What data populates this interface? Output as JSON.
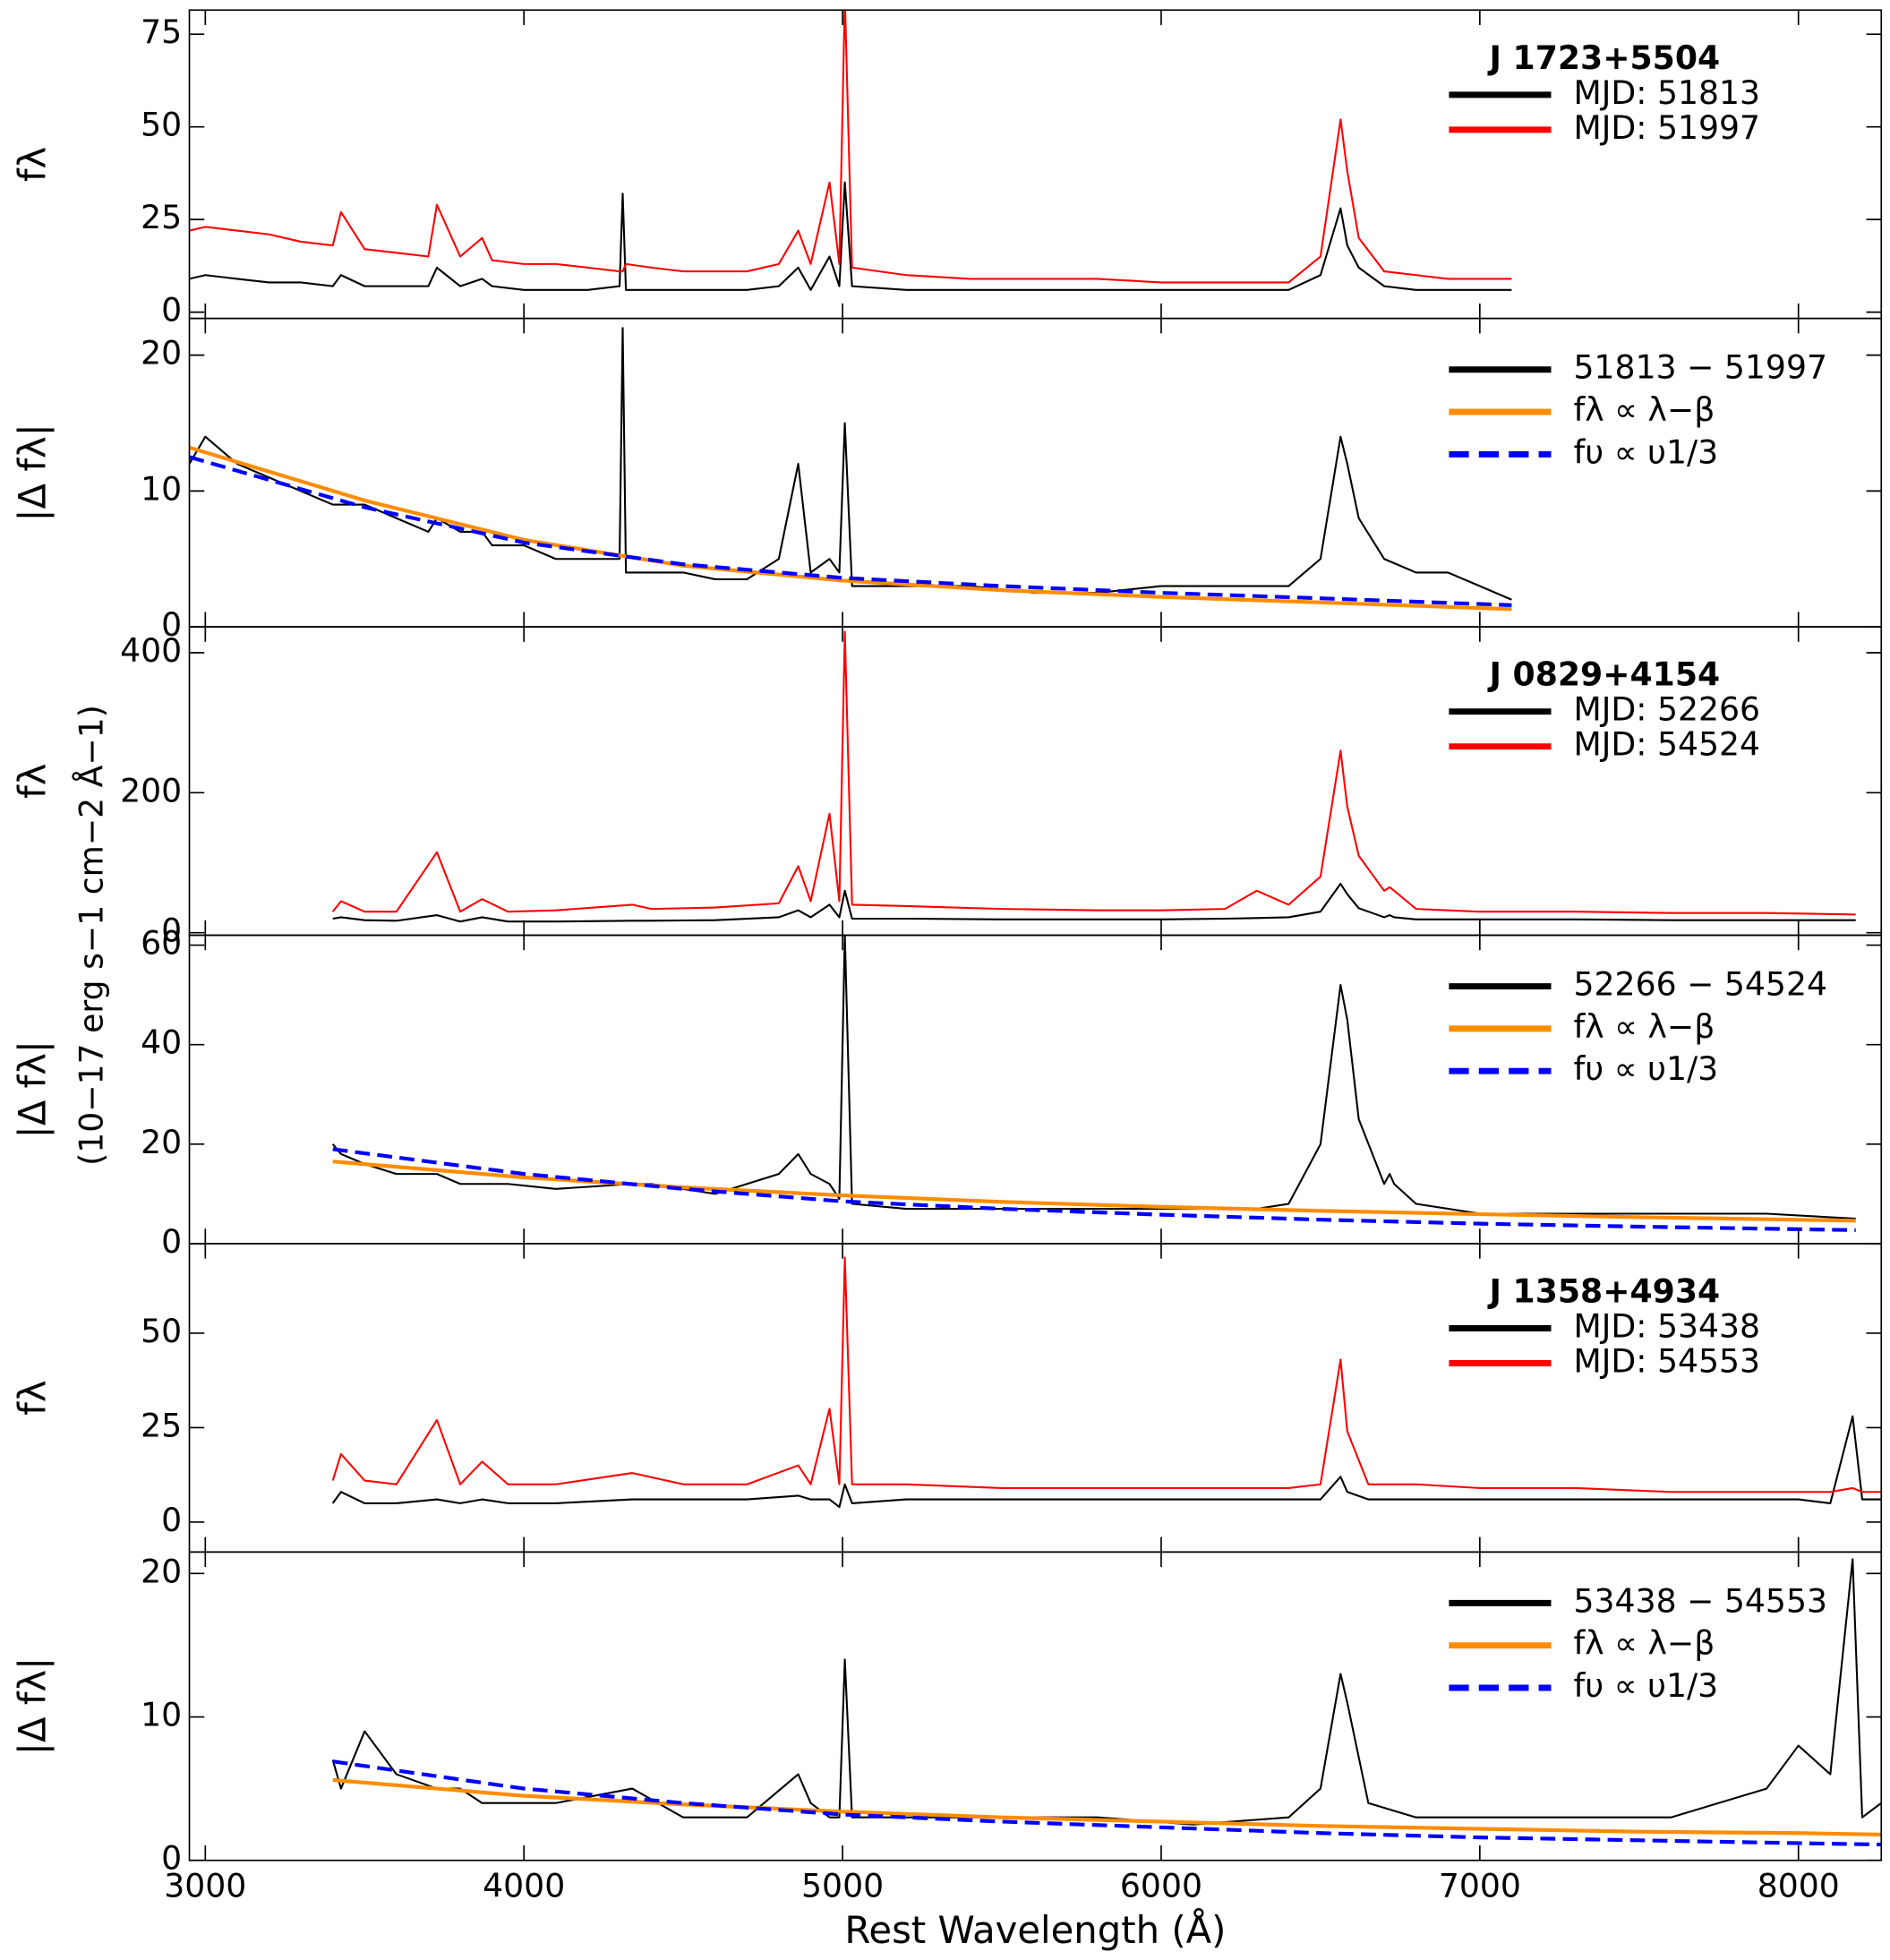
{
  "chart_data": [
    {
      "type": "line",
      "ylabel": "fλ",
      "legend_title": "J 1723+5504",
      "xlim": [
        2950,
        8260
      ],
      "xticks": [
        3000,
        4000,
        5000,
        6000,
        7000,
        8000
      ],
      "ylim": [
        -1.7,
        81.5
      ],
      "yticks": [
        0,
        25,
        50,
        75
      ],
      "x": [
        2950,
        3000,
        3100,
        3200,
        3300,
        3400,
        3426,
        3500,
        3600,
        3700,
        3727,
        3800,
        3869,
        3900,
        4000,
        4100,
        4200,
        4300,
        4310,
        4320,
        4400,
        4500,
        4600,
        4700,
        4800,
        4861,
        4900,
        4959,
        4990,
        5007,
        5030,
        5200,
        5400,
        5600,
        5800,
        6000,
        6200,
        6400,
        6500,
        6563,
        6584,
        6620,
        6700,
        6800,
        6900,
        7000,
        7100
      ],
      "series": [
        {
          "name": "MJD: 51813",
          "color": "#000000",
          "values": [
            9,
            10,
            9,
            8,
            8,
            7,
            10,
            7,
            7,
            7,
            12,
            7,
            9,
            7,
            6,
            6,
            6,
            7,
            32,
            6,
            6,
            6,
            6,
            6,
            7,
            12,
            6,
            15,
            7,
            35,
            7,
            6,
            6,
            6,
            6,
            6,
            6,
            6,
            10,
            28,
            18,
            12,
            7,
            6,
            6,
            6,
            6
          ]
        },
        {
          "name": "MJD: 51997",
          "color": "#ff0000",
          "values": [
            22,
            23,
            22,
            21,
            19,
            18,
            27,
            17,
            16,
            15,
            29,
            15,
            20,
            14,
            13,
            13,
            12,
            11,
            11,
            13,
            12,
            11,
            11,
            11,
            13,
            22,
            13,
            35,
            13,
            85,
            12,
            10,
            9,
            9,
            9,
            8,
            8,
            8,
            15,
            52,
            38,
            20,
            11,
            10,
            9,
            9,
            9
          ]
        }
      ]
    },
    {
      "type": "line",
      "ylabel": "|Δ fλ|",
      "xlim": [
        2950,
        8260
      ],
      "xticks": [
        3000,
        4000,
        5000,
        6000,
        7000,
        8000
      ],
      "ylim": [
        0,
        22.7
      ],
      "yticks": [
        0,
        10,
        20
      ],
      "x": [
        2950,
        3000,
        3100,
        3200,
        3300,
        3400,
        3426,
        3500,
        3600,
        3700,
        3727,
        3800,
        3869,
        3900,
        4000,
        4100,
        4200,
        4300,
        4310,
        4320,
        4400,
        4500,
        4600,
        4700,
        4800,
        4861,
        4900,
        4959,
        4990,
        5007,
        5030,
        5200,
        5400,
        5600,
        5800,
        6000,
        6200,
        6400,
        6500,
        6563,
        6584,
        6620,
        6700,
        6800,
        6900,
        7000,
        7100
      ],
      "series": [
        {
          "name": "51813 − 51997",
          "color": "#000000",
          "values": [
            12,
            14,
            12,
            11,
            10,
            9,
            9,
            9,
            8,
            7,
            8,
            7,
            7,
            6,
            6,
            5,
            5,
            5,
            22,
            4,
            4,
            4,
            3.5,
            3.5,
            5,
            12,
            4,
            5,
            4,
            15,
            3,
            3,
            3,
            2.5,
            2.5,
            3,
            3,
            3,
            5,
            14,
            12,
            8,
            5,
            4,
            4,
            3,
            2
          ]
        },
        {
          "name": "fλ ∝ λ−β",
          "color": "#ff8c00",
          "x": [
            2950,
            3500,
            4000,
            4500,
            5000,
            5500,
            6000,
            6500,
            7100
          ],
          "values": [
            13.2,
            9.3,
            6.4,
            4.5,
            3.4,
            2.7,
            2.2,
            1.8,
            1.3
          ]
        },
        {
          "name": "fυ ∝ υ1/3",
          "color": "#0000ff",
          "dashed": true,
          "x": [
            2950,
            3500,
            4000,
            4500,
            5000,
            5500,
            6000,
            6500,
            7100
          ],
          "values": [
            12.5,
            8.8,
            6.2,
            4.6,
            3.6,
            3.0,
            2.5,
            2.1,
            1.6
          ]
        }
      ]
    },
    {
      "type": "line",
      "ylabel": "fλ",
      "legend_title": "J 0829+4154",
      "xlim": [
        2950,
        8260
      ],
      "xticks": [
        3000,
        4000,
        5000,
        6000,
        7000,
        8000
      ],
      "ylim": [
        -3.6,
        437
      ],
      "yticks": [
        0,
        200,
        400
      ],
      "x": [
        3400,
        3426,
        3500,
        3600,
        3727,
        3800,
        3869,
        3950,
        4100,
        4340,
        4400,
        4600,
        4800,
        4861,
        4900,
        4959,
        4990,
        5007,
        5030,
        5200,
        5500,
        5800,
        6000,
        6200,
        6300,
        6400,
        6500,
        6563,
        6584,
        6620,
        6700,
        6717,
        6731,
        6800,
        7000,
        7300,
        7600,
        7900,
        8180
      ],
      "series": [
        {
          "name": "MJD: 52266",
          "color": "#000000",
          "values": [
            20,
            22,
            18,
            17,
            25,
            16,
            22,
            16,
            16,
            17,
            17,
            18,
            22,
            32,
            22,
            40,
            22,
            60,
            20,
            20,
            19,
            19,
            19,
            20,
            21,
            22,
            30,
            70,
            55,
            35,
            22,
            25,
            22,
            19,
            19,
            19,
            18,
            18,
            18
          ]
        },
        {
          "name": "MJD: 54524",
          "color": "#ff0000",
          "values": [
            30,
            45,
            30,
            30,
            115,
            30,
            48,
            30,
            32,
            40,
            34,
            36,
            42,
            95,
            45,
            170,
            45,
            430,
            40,
            38,
            34,
            32,
            32,
            34,
            60,
            40,
            80,
            260,
            180,
            110,
            60,
            65,
            60,
            34,
            30,
            30,
            28,
            28,
            26
          ]
        }
      ]
    },
    {
      "type": "line",
      "ylabel": "|Δ fλ|",
      "units_label": "(10−17 erg s−1 cm−2 Å−1)",
      "xlim": [
        2950,
        8260
      ],
      "xticks": [
        3000,
        4000,
        5000,
        6000,
        7000,
        8000
      ],
      "ylim": [
        0,
        62
      ],
      "yticks": [
        0,
        20,
        40,
        60
      ],
      "x": [
        3400,
        3426,
        3500,
        3600,
        3727,
        3800,
        3869,
        3950,
        4100,
        4340,
        4400,
        4600,
        4800,
        4861,
        4900,
        4959,
        4990,
        5007,
        5030,
        5200,
        5500,
        5800,
        6000,
        6200,
        6300,
        6400,
        6500,
        6563,
        6584,
        6620,
        6700,
        6717,
        6731,
        6800,
        7000,
        7300,
        7600,
        7900,
        8180
      ],
      "series": [
        {
          "name": "52266 − 54524",
          "color": "#000000",
          "values": [
            20,
            18,
            16,
            14,
            14,
            12,
            12,
            12,
            11,
            12,
            12,
            10,
            14,
            18,
            14,
            12,
            9,
            62,
            8,
            7,
            7,
            7,
            7,
            7,
            7,
            8,
            20,
            52,
            45,
            25,
            12,
            14,
            12,
            8,
            6,
            6,
            6,
            6,
            5
          ]
        },
        {
          "name": "fλ ∝ λ−β",
          "color": "#ff8c00",
          "x": [
            3400,
            4000,
            4500,
            5000,
            5500,
            6000,
            6500,
            7000,
            7500,
            8180
          ],
          "values": [
            16.5,
            13.3,
            11.3,
            9.7,
            8.4,
            7.4,
            6.6,
            5.9,
            5.3,
            4.6
          ]
        },
        {
          "name": "fυ ∝ υ1/3",
          "color": "#0000ff",
          "dashed": true,
          "x": [
            3400,
            4000,
            4500,
            5000,
            5500,
            6000,
            6500,
            7000,
            7500,
            8180
          ],
          "values": [
            19,
            14,
            11,
            8.5,
            7,
            5.8,
            4.8,
            4,
            3.4,
            2.7
          ]
        }
      ]
    },
    {
      "type": "line",
      "ylabel": "fλ",
      "legend_title": "J 1358+4934",
      "xlim": [
        2950,
        8260
      ],
      "xticks": [
        3000,
        4000,
        5000,
        6000,
        7000,
        8000
      ],
      "ylim": [
        -7.9,
        73.7
      ],
      "yticks": [
        0,
        25,
        50
      ],
      "x": [
        3400,
        3426,
        3500,
        3600,
        3727,
        3800,
        3869,
        3950,
        4100,
        4340,
        4500,
        4700,
        4861,
        4900,
        4959,
        4990,
        5007,
        5030,
        5200,
        5500,
        5800,
        6100,
        6400,
        6500,
        6563,
        6584,
        6650,
        6800,
        7000,
        7300,
        7600,
        7900,
        8000,
        8100,
        8170,
        8200,
        8260
      ],
      "series": [
        {
          "name": "MJD: 53438",
          "color": "#000000",
          "values": [
            5,
            8,
            5,
            5,
            6,
            5,
            6,
            5,
            5,
            6,
            6,
            6,
            7,
            6,
            6,
            4,
            10,
            5,
            6,
            6,
            6,
            6,
            6,
            6,
            12,
            8,
            6,
            6,
            6,
            6,
            6,
            6,
            6,
            5,
            28,
            6,
            6
          ]
        },
        {
          "name": "MJD: 54553",
          "color": "#ff0000",
          "values": [
            11,
            18,
            11,
            10,
            27,
            10,
            16,
            10,
            10,
            13,
            10,
            10,
            15,
            10,
            30,
            10,
            70,
            10,
            10,
            9,
            9,
            9,
            9,
            10,
            43,
            24,
            10,
            10,
            9,
            9,
            8,
            8,
            8,
            8,
            9,
            8,
            8
          ]
        }
      ]
    },
    {
      "type": "line",
      "ylabel": "|Δ fλ|",
      "xlabel": "Rest Wavelength (Å)",
      "xlim": [
        2950,
        8260
      ],
      "xticks": [
        3000,
        4000,
        5000,
        6000,
        7000,
        8000
      ],
      "ylim": [
        0,
        21.5
      ],
      "yticks": [
        0,
        10,
        20
      ],
      "x": [
        3400,
        3426,
        3500,
        3600,
        3727,
        3800,
        3869,
        3950,
        4100,
        4340,
        4500,
        4700,
        4861,
        4900,
        4959,
        4990,
        5007,
        5030,
        5200,
        5500,
        5800,
        6100,
        6400,
        6500,
        6563,
        6584,
        6650,
        6800,
        7000,
        7300,
        7600,
        7900,
        8000,
        8100,
        8170,
        8200,
        8260
      ],
      "series": [
        {
          "name": "53438 − 54553",
          "color": "#000000",
          "values": [
            7,
            5,
            9,
            6,
            5,
            5,
            4,
            4,
            4,
            5,
            3,
            3,
            6,
            4,
            3,
            3,
            14,
            3,
            3,
            3,
            3,
            2.5,
            3,
            5,
            13,
            11,
            4,
            3,
            3,
            3,
            3,
            5,
            8,
            6,
            21,
            3,
            4
          ]
        },
        {
          "name": "fλ ∝ λ−β",
          "color": "#ff8c00",
          "x": [
            3400,
            4000,
            4500,
            5000,
            5500,
            6000,
            6500,
            7000,
            7500,
            8000,
            8260
          ],
          "values": [
            5.6,
            4.5,
            3.9,
            3.4,
            3.0,
            2.7,
            2.4,
            2.2,
            2.0,
            1.9,
            1.8
          ]
        },
        {
          "name": "fυ ∝ υ1/3",
          "color": "#0000ff",
          "dashed": true,
          "x": [
            3400,
            4000,
            4500,
            5000,
            5500,
            6000,
            6500,
            7000,
            7500,
            8000,
            8260
          ],
          "values": [
            6.9,
            5.0,
            4.0,
            3.2,
            2.7,
            2.3,
            1.9,
            1.6,
            1.4,
            1.2,
            1.1
          ]
        }
      ]
    }
  ]
}
